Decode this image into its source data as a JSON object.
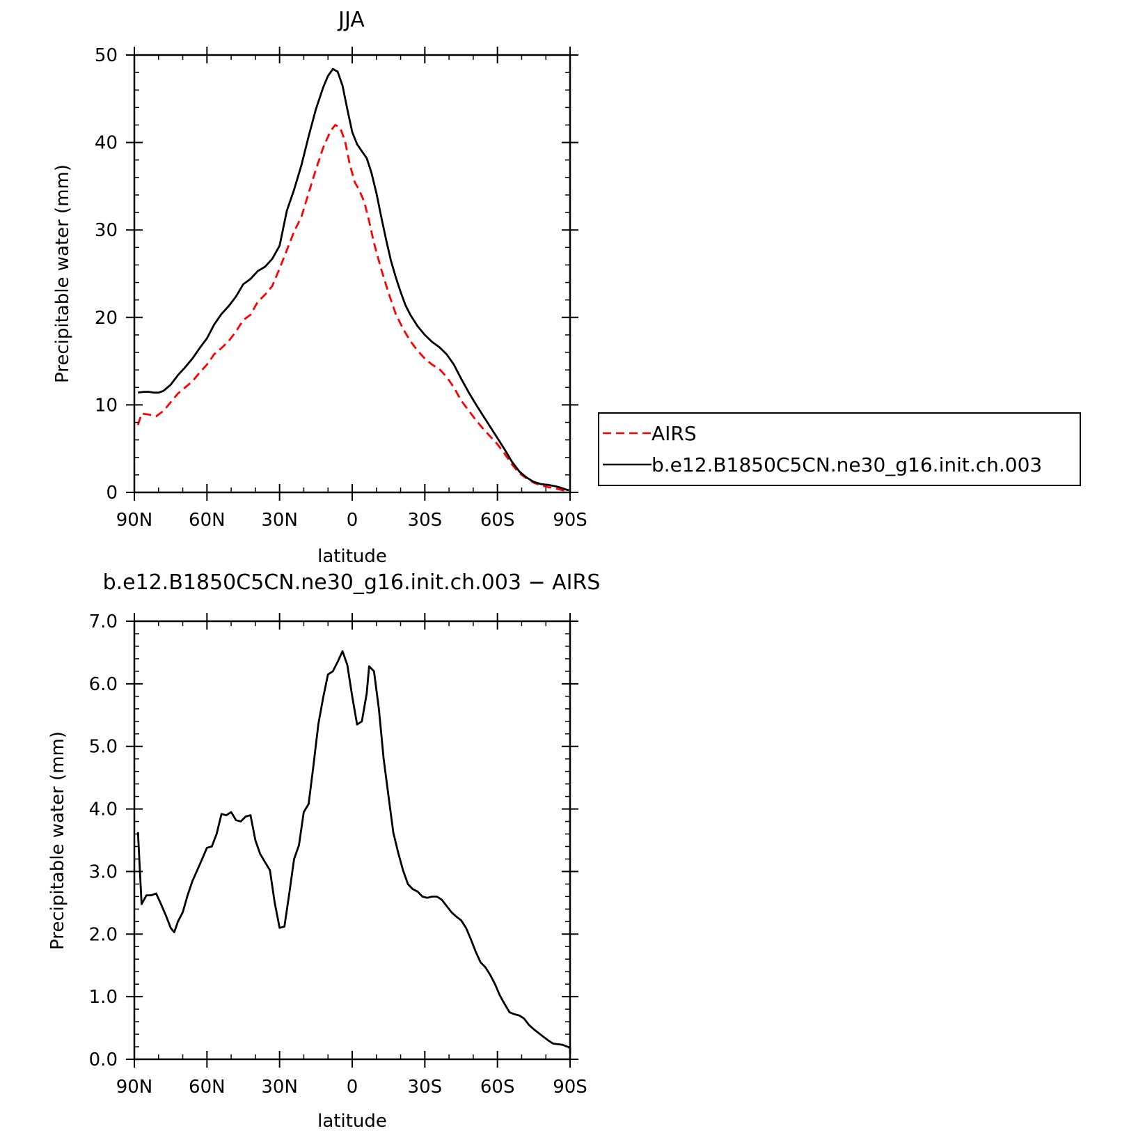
{
  "chart_data": [
    {
      "type": "line",
      "title": "JJA",
      "xlabel": "latitude",
      "ylabel": "Precipitable water (mm)",
      "xlim": [
        90,
        -90
      ],
      "ylim": [
        0,
        50
      ],
      "xticks": [
        {
          "value": 90,
          "label": "90N"
        },
        {
          "value": 60,
          "label": "60N"
        },
        {
          "value": 30,
          "label": "30N"
        },
        {
          "value": 0,
          "label": "0"
        },
        {
          "value": -30,
          "label": "30S"
        },
        {
          "value": -60,
          "label": "60S"
        },
        {
          "value": -90,
          "label": "90S"
        }
      ],
      "yticks": [
        {
          "value": 0,
          "label": "0"
        },
        {
          "value": 10,
          "label": "10"
        },
        {
          "value": 20,
          "label": "20"
        },
        {
          "value": 30,
          "label": "30"
        },
        {
          "value": 40,
          "label": "40"
        },
        {
          "value": 50,
          "label": "50"
        }
      ],
      "grid": false,
      "legend": {
        "placement": "right"
      },
      "series": [
        {
          "name": "AIRS",
          "color": "#ff0000",
          "dash": "dashed",
          "points": [
            [
              88.5,
              7.7
            ],
            [
              87,
              9.0
            ],
            [
              84,
              8.9
            ],
            [
              81,
              8.7
            ],
            [
              78,
              9.3
            ],
            [
              75,
              10.3
            ],
            [
              72,
              11.3
            ],
            [
              69,
              12.0
            ],
            [
              66,
              12.7
            ],
            [
              63,
              13.7
            ],
            [
              60,
              14.6
            ],
            [
              57,
              15.8
            ],
            [
              54,
              16.5
            ],
            [
              51,
              17.3
            ],
            [
              48,
              18.4
            ],
            [
              45,
              19.7
            ],
            [
              42,
              20.3
            ],
            [
              39,
              21.8
            ],
            [
              36,
              22.6
            ],
            [
              33,
              23.6
            ],
            [
              30,
              25.6
            ],
            [
              27,
              27.7
            ],
            [
              24,
              29.8
            ],
            [
              21,
              31.5
            ],
            [
              18,
              34.2
            ],
            [
              15,
              36.9
            ],
            [
              12,
              39.4
            ],
            [
              9,
              41.3
            ],
            [
              7,
              42.0
            ],
            [
              5,
              41.7
            ],
            [
              3,
              40.2
            ],
            [
              1,
              37.5
            ],
            [
              -1,
              35.5
            ],
            [
              -3,
              34.5
            ],
            [
              -5,
              33.2
            ],
            [
              -7,
              31.0
            ],
            [
              -9,
              28.5
            ],
            [
              -12,
              25.5
            ],
            [
              -15,
              22.8
            ],
            [
              -18,
              20.4
            ],
            [
              -21,
              18.7
            ],
            [
              -24,
              17.3
            ],
            [
              -27,
              16.2
            ],
            [
              -30,
              15.3
            ],
            [
              -33,
              14.6
            ],
            [
              -36,
              14.1
            ],
            [
              -39,
              13.2
            ],
            [
              -42,
              12.0
            ],
            [
              -45,
              10.5
            ],
            [
              -48,
              9.4
            ],
            [
              -51,
              8.3
            ],
            [
              -54,
              7.3
            ],
            [
              -57,
              6.4
            ],
            [
              -60,
              5.5
            ],
            [
              -63,
              4.4
            ],
            [
              -66,
              3.2
            ],
            [
              -69,
              2.2
            ],
            [
              -72,
              1.6
            ],
            [
              -75,
              1.1
            ],
            [
              -78,
              0.8
            ],
            [
              -81,
              0.6
            ],
            [
              -84,
              0.45
            ],
            [
              -87,
              0.25
            ],
            [
              -89,
              0.15
            ]
          ]
        },
        {
          "name": "b.e12.B1850C5CN.ne30_g16.init.ch.003",
          "color": "#000000",
          "dash": "solid",
          "points": [
            [
              88.5,
              11.4
            ],
            [
              86,
              11.5
            ],
            [
              84,
              11.5
            ],
            [
              82,
              11.4
            ],
            [
              80,
              11.4
            ],
            [
              78,
              11.6
            ],
            [
              75,
              12.3
            ],
            [
              72,
              13.4
            ],
            [
              69,
              14.3
            ],
            [
              66,
              15.3
            ],
            [
              63,
              16.5
            ],
            [
              60,
              17.6
            ],
            [
              57,
              19.2
            ],
            [
              54,
              20.4
            ],
            [
              51,
              21.3
            ],
            [
              48,
              22.4
            ],
            [
              45,
              23.8
            ],
            [
              42,
              24.4
            ],
            [
              39,
              25.3
            ],
            [
              36,
              25.8
            ],
            [
              33,
              26.7
            ],
            [
              30,
              28.2
            ],
            [
              27,
              32.2
            ],
            [
              24,
              34.6
            ],
            [
              21,
              37.4
            ],
            [
              18,
              40.7
            ],
            [
              15,
              43.8
            ],
            [
              12,
              46.3
            ],
            [
              10,
              47.6
            ],
            [
              8,
              48.4
            ],
            [
              6,
              48.1
            ],
            [
              4,
              46.5
            ],
            [
              2,
              43.8
            ],
            [
              0,
              41.2
            ],
            [
              -2,
              39.8
            ],
            [
              -4,
              39.0
            ],
            [
              -6,
              38.2
            ],
            [
              -8,
              36.5
            ],
            [
              -10,
              34.2
            ],
            [
              -12,
              31.5
            ],
            [
              -14,
              28.9
            ],
            [
              -16,
              26.5
            ],
            [
              -18,
              24.6
            ],
            [
              -20,
              22.9
            ],
            [
              -22,
              21.4
            ],
            [
              -24,
              20.3
            ],
            [
              -27,
              19.0
            ],
            [
              -30,
              18.0
            ],
            [
              -33,
              17.2
            ],
            [
              -36,
              16.6
            ],
            [
              -39,
              15.8
            ],
            [
              -42,
              14.6
            ],
            [
              -45,
              13.0
            ],
            [
              -48,
              11.5
            ],
            [
              -51,
              10.1
            ],
            [
              -54,
              8.8
            ],
            [
              -57,
              7.5
            ],
            [
              -60,
              6.2
            ],
            [
              -63,
              4.9
            ],
            [
              -66,
              3.5
            ],
            [
              -69,
              2.4
            ],
            [
              -72,
              1.7
            ],
            [
              -75,
              1.2
            ],
            [
              -78,
              0.95
            ],
            [
              -81,
              0.85
            ],
            [
              -84,
              0.7
            ],
            [
              -86,
              0.55
            ],
            [
              -88,
              0.35
            ],
            [
              -89.5,
              0.25
            ]
          ]
        }
      ]
    },
    {
      "type": "line",
      "title": "b.e12.B1850C5CN.ne30_g16.init.ch.003 − AIRS",
      "xlabel": "latitude",
      "ylabel": "Precipitable water (mm)",
      "xlim": [
        90,
        -90
      ],
      "ylim": [
        0,
        7
      ],
      "xticks": [
        {
          "value": 90,
          "label": "90N"
        },
        {
          "value": 60,
          "label": "60N"
        },
        {
          "value": 30,
          "label": "30N"
        },
        {
          "value": 0,
          "label": "0"
        },
        {
          "value": -30,
          "label": "30S"
        },
        {
          "value": -60,
          "label": "60S"
        },
        {
          "value": -90,
          "label": "90S"
        }
      ],
      "yticks": [
        {
          "value": 0,
          "label": "0.0"
        },
        {
          "value": 1,
          "label": "1.0"
        },
        {
          "value": 2,
          "label": "2.0"
        },
        {
          "value": 3,
          "label": "3.0"
        },
        {
          "value": 4,
          "label": "4.0"
        },
        {
          "value": 5,
          "label": "5.0"
        },
        {
          "value": 6,
          "label": "6.0"
        },
        {
          "value": 7,
          "label": "7.0"
        }
      ],
      "grid": false,
      "series": [
        {
          "color": "#000000",
          "dash": "solid",
          "points": [
            [
              88.5,
              3.63
            ],
            [
              87,
              2.48
            ],
            [
              85,
              2.62
            ],
            [
              83,
              2.62
            ],
            [
              81,
              2.65
            ],
            [
              79,
              2.48
            ],
            [
              77,
              2.3
            ],
            [
              75,
              2.1
            ],
            [
              73.5,
              2.03
            ],
            [
              72,
              2.2
            ],
            [
              70,
              2.35
            ],
            [
              68,
              2.62
            ],
            [
              66,
              2.85
            ],
            [
              64,
              3.02
            ],
            [
              62,
              3.2
            ],
            [
              60,
              3.38
            ],
            [
              58,
              3.4
            ],
            [
              56,
              3.6
            ],
            [
              54,
              3.92
            ],
            [
              52,
              3.9
            ],
            [
              50,
              3.95
            ],
            [
              48,
              3.82
            ],
            [
              46,
              3.8
            ],
            [
              44,
              3.88
            ],
            [
              42,
              3.9
            ],
            [
              40,
              3.5
            ],
            [
              38,
              3.28
            ],
            [
              36,
              3.15
            ],
            [
              34,
              3.02
            ],
            [
              32,
              2.5
            ],
            [
              30,
              2.1
            ],
            [
              28,
              2.12
            ],
            [
              26,
              2.65
            ],
            [
              24,
              3.2
            ],
            [
              22,
              3.42
            ],
            [
              20,
              3.95
            ],
            [
              18,
              4.08
            ],
            [
              16,
              4.7
            ],
            [
              14,
              5.35
            ],
            [
              12,
              5.78
            ],
            [
              10,
              6.15
            ],
            [
              8,
              6.2
            ],
            [
              6,
              6.35
            ],
            [
              4,
              6.52
            ],
            [
              2,
              6.3
            ],
            [
              0,
              5.8
            ],
            [
              -2,
              5.35
            ],
            [
              -4,
              5.4
            ],
            [
              -6,
              5.85
            ],
            [
              -7,
              6.28
            ],
            [
              -9,
              6.2
            ],
            [
              -11,
              5.6
            ],
            [
              -13,
              4.8
            ],
            [
              -15,
              4.2
            ],
            [
              -17,
              3.62
            ],
            [
              -19,
              3.3
            ],
            [
              -21,
              3.02
            ],
            [
              -23,
              2.8
            ],
            [
              -25,
              2.72
            ],
            [
              -27,
              2.68
            ],
            [
              -29,
              2.6
            ],
            [
              -31,
              2.58
            ],
            [
              -33,
              2.6
            ],
            [
              -35,
              2.6
            ],
            [
              -37,
              2.55
            ],
            [
              -39,
              2.45
            ],
            [
              -41,
              2.35
            ],
            [
              -43,
              2.28
            ],
            [
              -45,
              2.22
            ],
            [
              -47,
              2.1
            ],
            [
              -49,
              1.92
            ],
            [
              -51,
              1.72
            ],
            [
              -53,
              1.55
            ],
            [
              -55,
              1.47
            ],
            [
              -57,
              1.35
            ],
            [
              -59,
              1.2
            ],
            [
              -61,
              1.02
            ],
            [
              -63,
              0.88
            ],
            [
              -65,
              0.75
            ],
            [
              -67,
              0.72
            ],
            [
              -69,
              0.7
            ],
            [
              -71,
              0.65
            ],
            [
              -73,
              0.55
            ],
            [
              -75,
              0.48
            ],
            [
              -77,
              0.42
            ],
            [
              -79,
              0.36
            ],
            [
              -81,
              0.3
            ],
            [
              -83,
              0.25
            ],
            [
              -85,
              0.24
            ],
            [
              -87,
              0.23
            ],
            [
              -89,
              0.2
            ],
            [
              -91,
              0.18
            ],
            [
              -93,
              0.15
            ],
            [
              -94.5,
              0.1
            ],
            [
              -96,
              0.09
            ]
          ]
        }
      ]
    }
  ]
}
